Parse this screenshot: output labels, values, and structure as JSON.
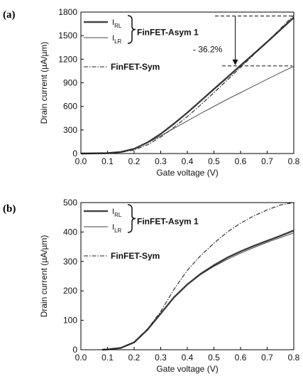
{
  "chart_data": [
    {
      "type": "line",
      "panel_label": "(a)",
      "xlabel": "Gate voltage (V)",
      "ylabel": "Drain current (µA/µm)",
      "xlim": [
        0.0,
        0.8
      ],
      "ylim": [
        0,
        1800
      ],
      "xticks": [
        "0.0",
        "0.1",
        "0.2",
        "0.3",
        "0.4",
        "0.5",
        "0.6",
        "0.7",
        "0.8"
      ],
      "yticks": [
        "0",
        "300",
        "600",
        "900",
        "1200",
        "1500",
        "1800"
      ],
      "legend_group_label": "FinFET-Asym 1",
      "x": [
        0.0,
        0.1,
        0.15,
        0.2,
        0.25,
        0.3,
        0.35,
        0.4,
        0.45,
        0.5,
        0.55,
        0.6,
        0.65,
        0.7,
        0.75,
        0.8
      ],
      "series": [
        {
          "name": "I_RL",
          "legend_main": "I",
          "legend_sub": "RL",
          "style": "thick",
          "values": [
            0,
            5,
            20,
            60,
            140,
            250,
            380,
            520,
            670,
            820,
            970,
            1120,
            1270,
            1420,
            1575,
            1730
          ]
        },
        {
          "name": "I_LR",
          "legend_main": "I",
          "legend_sub": "LR",
          "style": "thin",
          "values": [
            0,
            5,
            20,
            60,
            135,
            225,
            320,
            415,
            510,
            600,
            690,
            775,
            860,
            945,
            1030,
            1110
          ]
        },
        {
          "name": "FinFET-Sym",
          "style": "dashdot",
          "values": [
            0,
            4,
            15,
            45,
            110,
            210,
            335,
            470,
            620,
            775,
            935,
            1095,
            1260,
            1420,
            1590,
            1760
          ]
        }
      ],
      "annotation": "- 36.2%",
      "annotation_from": 1750,
      "annotation_to": 1115,
      "annotation_x": 0.58
    },
    {
      "type": "line",
      "panel_label": "(b)",
      "xlabel": "Gate voltage (V)",
      "ylabel": "Drain current (µA/µm)",
      "xlim": [
        0.0,
        0.8
      ],
      "ylim": [
        0,
        500
      ],
      "xticks": [
        "0.0",
        "0.1",
        "0.2",
        "0.3",
        "0.4",
        "0.5",
        "0.6",
        "0.7",
        "0.8"
      ],
      "yticks": [
        "0",
        "100",
        "200",
        "300",
        "400",
        "500"
      ],
      "legend_group_label": "FinFET-Asym 1",
      "x": [
        0.08,
        0.1,
        0.15,
        0.2,
        0.25,
        0.3,
        0.35,
        0.4,
        0.45,
        0.5,
        0.55,
        0.6,
        0.65,
        0.7,
        0.75,
        0.8
      ],
      "series": [
        {
          "name": "I_RL",
          "legend_main": "I",
          "legend_sub": "RL",
          "style": "thick",
          "values": [
            0,
            1,
            6,
            25,
            68,
            123,
            178,
            222,
            258,
            287,
            313,
            334,
            353,
            370,
            387,
            405
          ]
        },
        {
          "name": "I_LR",
          "legend_main": "I",
          "legend_sub": "LR",
          "style": "thin",
          "values": [
            0,
            1,
            6,
            25,
            68,
            123,
            178,
            220,
            255,
            283,
            307,
            328,
            347,
            365,
            381,
            397
          ]
        },
        {
          "name": "FinFET-Sym",
          "style": "dashdot",
          "values": [
            0,
            1,
            6,
            25,
            70,
            130,
            205,
            270,
            320,
            362,
            400,
            430,
            455,
            475,
            492,
            500
          ]
        }
      ]
    }
  ]
}
